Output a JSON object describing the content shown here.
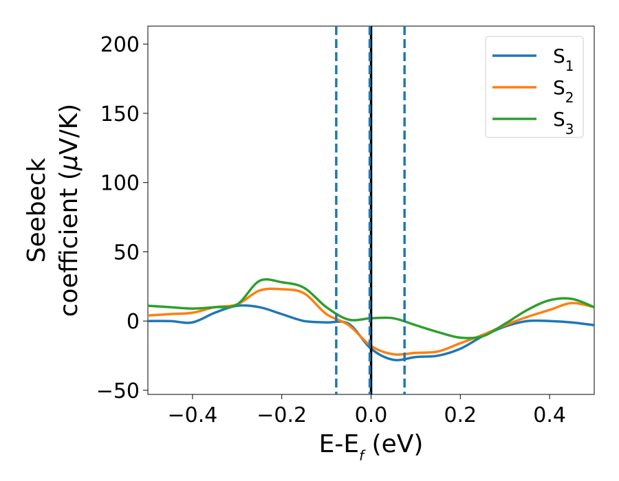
{
  "chart_data": {
    "type": "line",
    "title": "",
    "xlabel": {
      "main": "E-E",
      "sub": "f",
      "unit": " (eV)"
    },
    "ylabel": {
      "line1": "Seebeck",
      "line2_prefix": "coefficient  (",
      "mu": "μ",
      "line2_suffix": "V/K)"
    },
    "xlim": [
      -0.5,
      0.5
    ],
    "ylim": [
      -53,
      213
    ],
    "xticks": [
      -0.4,
      -0.2,
      0.0,
      0.2,
      0.4
    ],
    "xtick_labels": [
      "−0.4",
      "−0.2",
      "0.0",
      "0.2",
      "0.4"
    ],
    "yticks": [
      -50,
      0,
      50,
      100,
      150,
      200
    ],
    "ytick_labels": [
      "−50",
      "0",
      "50",
      "100",
      "150",
      "200"
    ],
    "vlines": [
      {
        "x": -0.078,
        "style": "dashed",
        "color": "#1f77b4"
      },
      {
        "x": 0.075,
        "style": "dashed",
        "color": "#1f77b4"
      },
      {
        "x": 0.0,
        "style": "solid",
        "color": "#000000"
      },
      {
        "x": -0.003,
        "style": "dashed",
        "color": "#1f77b4"
      }
    ],
    "legend_position": "top-right",
    "series": [
      {
        "name": "S",
        "sub": "1",
        "color": "#1f77b4",
        "x": [
          -0.5,
          -0.45,
          -0.4,
          -0.35,
          -0.3,
          -0.25,
          -0.2,
          -0.15,
          -0.1,
          -0.05,
          0.0,
          0.05,
          0.1,
          0.15,
          0.2,
          0.25,
          0.3,
          0.35,
          0.4,
          0.45,
          0.5
        ],
        "y": [
          0,
          0,
          -1,
          6,
          11,
          10,
          5,
          0,
          -1,
          -2,
          -20,
          -28,
          -26,
          -25,
          -20,
          -11,
          -4,
          0,
          0,
          -1,
          -3
        ]
      },
      {
        "name": "S",
        "sub": "2",
        "color": "#ff7f0e",
        "x": [
          -0.5,
          -0.45,
          -0.4,
          -0.35,
          -0.3,
          -0.25,
          -0.2,
          -0.15,
          -0.1,
          -0.05,
          0.0,
          0.05,
          0.1,
          0.15,
          0.2,
          0.25,
          0.3,
          0.35,
          0.4,
          0.45,
          0.5
        ],
        "y": [
          4,
          5,
          6,
          10,
          12,
          22,
          23,
          20,
          5,
          -3,
          -18,
          -24,
          -23,
          -22,
          -16,
          -10,
          -3,
          3,
          8,
          13,
          10
        ]
      },
      {
        "name": "S",
        "sub": "3",
        "color": "#2ca02c",
        "x": [
          -0.5,
          -0.45,
          -0.4,
          -0.35,
          -0.3,
          -0.25,
          -0.2,
          -0.15,
          -0.1,
          -0.05,
          0.0,
          0.05,
          0.1,
          0.15,
          0.2,
          0.25,
          0.3,
          0.35,
          0.4,
          0.45,
          0.5
        ],
        "y": [
          11,
          10,
          9,
          10,
          12,
          29,
          28,
          24,
          10,
          1,
          2,
          2,
          -3,
          -8,
          -12,
          -11,
          -2,
          8,
          15,
          16,
          10
        ]
      }
    ]
  }
}
